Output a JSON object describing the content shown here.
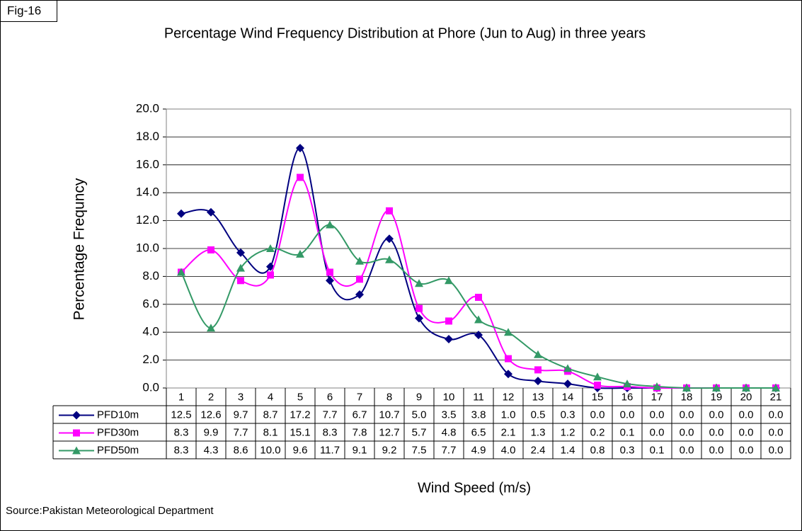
{
  "chart_data": {
    "type": "line",
    "label": "Fig-16",
    "title": "Percentage Wind Frequency Distribution at Phore (Jun  to Aug) in three years",
    "y_label": "Percentage Frequncy",
    "x_label": "Wind Speed (m/s)",
    "source": "Source:Pakistan Meteorological Department",
    "categories": [
      1,
      2,
      3,
      4,
      5,
      6,
      7,
      8,
      9,
      10,
      11,
      12,
      13,
      14,
      15,
      16,
      17,
      18,
      19,
      20,
      21
    ],
    "ylim": [
      0,
      20
    ],
    "yticks": [
      {
        "value": 0,
        "label": "0.0"
      },
      {
        "value": 2,
        "label": "2.0"
      },
      {
        "value": 4,
        "label": "4.0"
      },
      {
        "value": 6,
        "label": "6.0"
      },
      {
        "value": 8,
        "label": "8.0"
      },
      {
        "value": 10,
        "label": "10.0"
      },
      {
        "value": 12,
        "label": "12.0"
      },
      {
        "value": 14,
        "label": "14.0"
      },
      {
        "value": 16,
        "label": "16.0"
      },
      {
        "value": 18,
        "label": "18.0"
      },
      {
        "value": 20,
        "label": "20.0"
      }
    ],
    "grid": true,
    "smooth": true,
    "series": [
      {
        "name": "PFD10m",
        "color": "#000080",
        "marker": "diamond",
        "values": [
          12.5,
          12.6,
          9.7,
          8.7,
          17.2,
          7.7,
          6.7,
          10.7,
          5.0,
          3.5,
          3.8,
          1.0,
          0.5,
          0.3,
          0,
          0,
          0,
          0,
          0,
          0,
          0
        ],
        "value_labels": [
          "12.5",
          "12.6",
          "9.7",
          "8.7",
          "17.2",
          "7.7",
          "6.7",
          "10.7",
          "5.0",
          "3.5",
          "3.8",
          "1.0",
          "0.5",
          "0.3",
          "0.0",
          "0.0",
          "0.0",
          "0.0",
          "0.0",
          "0.0",
          "0.0"
        ]
      },
      {
        "name": "PFD30m",
        "color": "#ff00ff",
        "marker": "square",
        "values": [
          8.3,
          9.9,
          7.7,
          8.1,
          15.1,
          8.3,
          7.8,
          12.7,
          5.7,
          4.8,
          6.5,
          2.1,
          1.3,
          1.2,
          0.2,
          0.1,
          0,
          0,
          0,
          0,
          0
        ],
        "value_labels": [
          "8.3",
          "9.9",
          "7.7",
          "8.1",
          "15.1",
          "8.3",
          "7.8",
          "12.7",
          "5.7",
          "4.8",
          "6.5",
          "2.1",
          "1.3",
          "1.2",
          "0.2",
          "0.1",
          "0.0",
          "0.0",
          "0.0",
          "0.0",
          "0.0"
        ]
      },
      {
        "name": "PFD50m",
        "color": "#339966",
        "marker": "triangle",
        "values": [
          8.3,
          4.3,
          8.6,
          10.0,
          9.6,
          11.7,
          9.1,
          9.2,
          7.5,
          7.7,
          4.9,
          4.0,
          2.4,
          1.4,
          0.8,
          0.3,
          0.1,
          0,
          0,
          0,
          0
        ],
        "value_labels": [
          "8.3",
          "4.3",
          "8.6",
          "10.0",
          "9.6",
          "11.7",
          "9.1",
          "9.2",
          "7.5",
          "7.7",
          "4.9",
          "4.0",
          "2.4",
          "1.4",
          "0.8",
          "0.3",
          "0.1",
          "0.0",
          "0.0",
          "0.0",
          "0.0"
        ]
      }
    ]
  }
}
